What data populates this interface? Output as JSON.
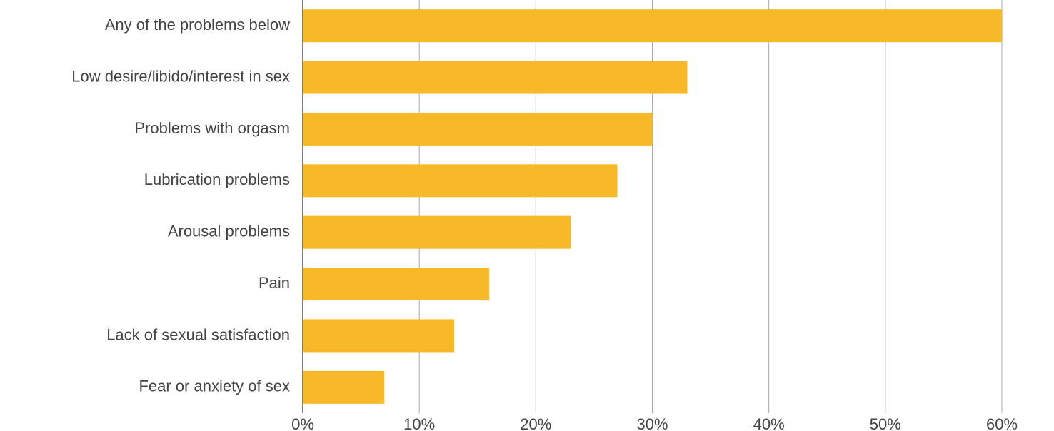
{
  "chart_data": {
    "type": "hbar",
    "categories": [
      "Any of the problems below",
      "Low desire/libido/interest in sex",
      "Problems with orgasm",
      "Lubrication problems",
      "Arousal problems",
      "Pain",
      "Lack of sexual satisfaction",
      "Fear or anxiety of sex"
    ],
    "values": [
      60,
      33,
      30,
      27,
      23,
      16,
      13,
      7
    ],
    "color": "#f7b927",
    "xlim": [
      0,
      60
    ],
    "xticks": [
      {
        "value": 0,
        "label": "0%"
      },
      {
        "value": 10,
        "label": "10%"
      },
      {
        "value": 20,
        "label": "20%"
      },
      {
        "value": 30,
        "label": "30%"
      },
      {
        "value": 40,
        "label": "40%"
      },
      {
        "value": 50,
        "label": "50%"
      },
      {
        "value": 60,
        "label": "60%"
      }
    ],
    "grid": true
  }
}
